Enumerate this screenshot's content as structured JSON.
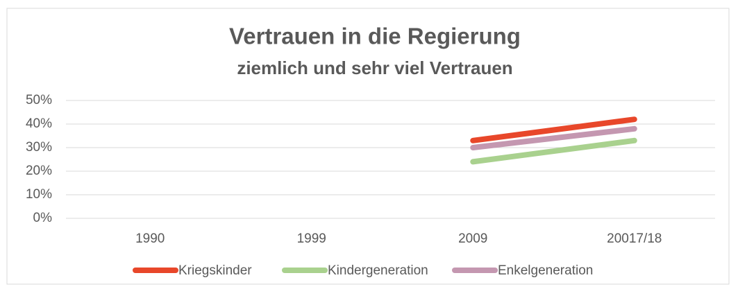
{
  "chart_data": {
    "type": "line",
    "title": "Vertrauen in die Regierung",
    "subtitle": "ziemlich und sehr viel Vertrauen",
    "categories": [
      "1990",
      "1999",
      "2009",
      "20017/18"
    ],
    "series": [
      {
        "name": "Kriegskinder",
        "color": "#e8472a",
        "values": [
          null,
          null,
          33,
          42
        ]
      },
      {
        "name": "Kindergeneration",
        "color": "#a9d18e",
        "values": [
          null,
          null,
          24,
          33
        ]
      },
      {
        "name": "Enkelgeneration",
        "color": "#c497b0",
        "values": [
          null,
          null,
          30,
          38
        ]
      }
    ],
    "ylim": [
      0,
      50
    ],
    "yticks": [
      {
        "value": 0,
        "label": "0%"
      },
      {
        "value": 10,
        "label": "10%"
      },
      {
        "value": 20,
        "label": "20%"
      },
      {
        "value": 30,
        "label": "30%"
      },
      {
        "value": 40,
        "label": "40%"
      },
      {
        "value": 50,
        "label": "50%"
      }
    ],
    "grid": true,
    "legend": "bottom"
  }
}
